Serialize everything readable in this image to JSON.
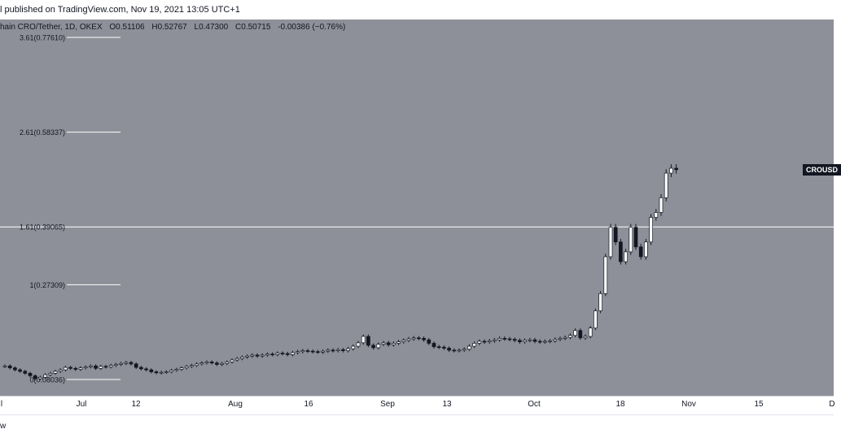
{
  "header": {
    "published": "l published on TradingView.com, Nov 19, 2021 13:05 UTC+1"
  },
  "symbol": {
    "name": "hain CRO/Tether, 1D, OKEX",
    "open": "O0.51106",
    "high": "H0.52767",
    "low": "L0.47300",
    "close": "C0.50715",
    "change": "-0.00386 (−0.76%)"
  },
  "price_tag": "CROUSD",
  "footer_text": "w",
  "colors": {
    "background": "#8e9099",
    "candle_up": "#ffffff",
    "candle_down": "#131722",
    "fib_line": "#ffffff"
  },
  "chart_data": {
    "type": "candlestick",
    "x_ticks": [
      "l",
      "Jul",
      "12",
      "Aug",
      "16",
      "Sep",
      "13",
      "Oct",
      "18",
      "Nov",
      "15",
      "D"
    ],
    "fib_levels": [
      {
        "label": "3.61(0.77610)",
        "value": 0.7761
      },
      {
        "label": "2.61(0.58337)",
        "value": 0.58337
      },
      {
        "label": "1.61(0.39065)",
        "value": 0.39065
      },
      {
        "label": "1(0.27309)",
        "value": 0.27309
      },
      {
        "label": "0(0.08036)",
        "value": 0.08036
      }
    ],
    "last_close": 0.50715,
    "closes": [
      0.108,
      0.104,
      0.1,
      0.097,
      0.093,
      0.088,
      0.082,
      0.085,
      0.09,
      0.093,
      0.097,
      0.1,
      0.105,
      0.103,
      0.101,
      0.104,
      0.106,
      0.108,
      0.103,
      0.107,
      0.106,
      0.109,
      0.111,
      0.113,
      0.115,
      0.112,
      0.105,
      0.102,
      0.1,
      0.096,
      0.094,
      0.095,
      0.096,
      0.099,
      0.101,
      0.104,
      0.107,
      0.109,
      0.112,
      0.114,
      0.116,
      0.114,
      0.111,
      0.113,
      0.116,
      0.12,
      0.123,
      0.126,
      0.128,
      0.13,
      0.128,
      0.13,
      0.132,
      0.131,
      0.134,
      0.133,
      0.131,
      0.135,
      0.137,
      0.139,
      0.138,
      0.137,
      0.136,
      0.138,
      0.14,
      0.139,
      0.141,
      0.139,
      0.143,
      0.148,
      0.155,
      0.168,
      0.15,
      0.145,
      0.152,
      0.155,
      0.151,
      0.154,
      0.157,
      0.16,
      0.163,
      0.165,
      0.164,
      0.161,
      0.154,
      0.147,
      0.146,
      0.144,
      0.14,
      0.139,
      0.14,
      0.142,
      0.148,
      0.154,
      0.158,
      0.157,
      0.159,
      0.161,
      0.164,
      0.163,
      0.162,
      0.16,
      0.157,
      0.16,
      0.161,
      0.158,
      0.157,
      0.158,
      0.159,
      0.162,
      0.164,
      0.166,
      0.17,
      0.18,
      0.165,
      0.168,
      0.185,
      0.22,
      0.255,
      0.33,
      0.39,
      0.36,
      0.32,
      0.34,
      0.39,
      0.35,
      0.33,
      0.36,
      0.41,
      0.42,
      0.45,
      0.5,
      0.51,
      0.507
    ]
  }
}
